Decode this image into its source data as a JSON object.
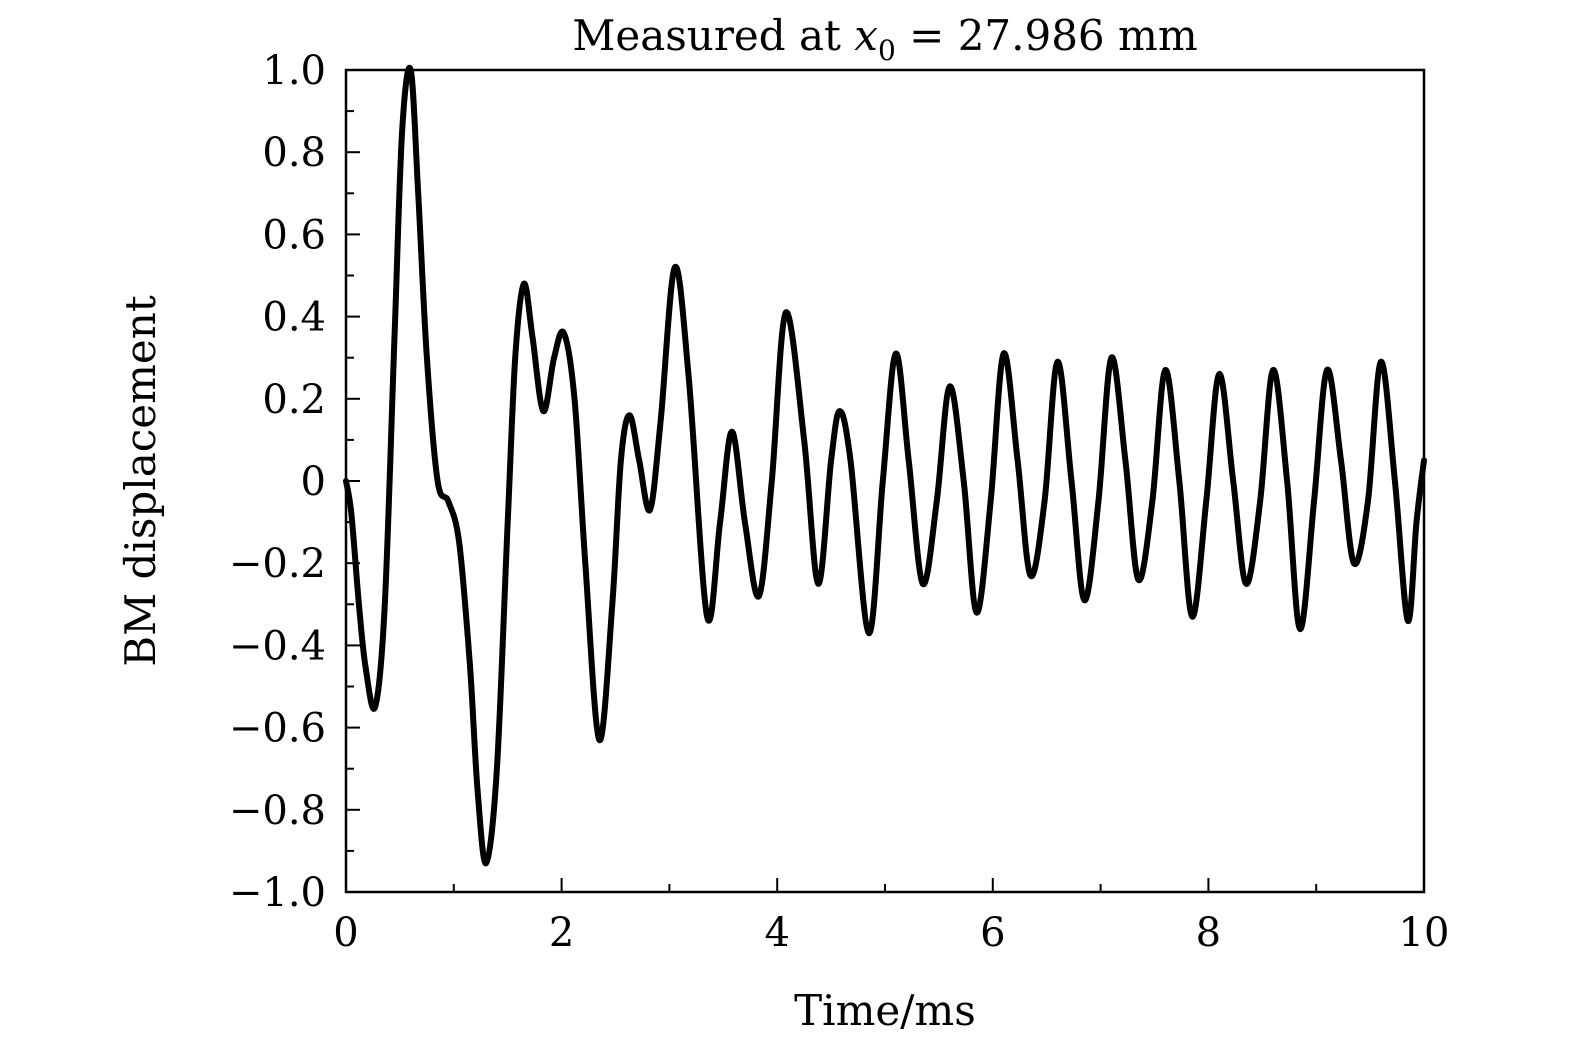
{
  "chart_data": {
    "type": "line",
    "title": "Measured at x₀ = 27.986 mm",
    "title_parts": {
      "prefix": "Measured at ",
      "var": "x",
      "sub": "0",
      "suffix": " = 27.986 mm"
    },
    "xlabel": "Time/ms",
    "ylabel": "BM displacement",
    "xlim": [
      0,
      10
    ],
    "ylim": [
      -1.0,
      1.0
    ],
    "x_ticks": [
      0,
      2,
      4,
      6,
      8,
      10
    ],
    "x_tick_labels": [
      "0",
      "2",
      "4",
      "6",
      "8",
      "10"
    ],
    "x_minor_ticks": [
      1,
      3,
      5,
      7,
      9
    ],
    "y_ticks": [
      -1.0,
      -0.8,
      -0.6,
      -0.4,
      -0.2,
      0,
      0.2,
      0.4,
      0.6,
      0.8,
      1.0
    ],
    "y_tick_labels": [
      "−1.0",
      "−0.8",
      "−0.6",
      "−0.4",
      "−0.2",
      "0",
      "0.2",
      "0.4",
      "0.6",
      "0.8",
      "1.0"
    ],
    "y_minor_ticks": [
      -0.9,
      -0.7,
      -0.5,
      -0.3,
      -0.1,
      0.1,
      0.3,
      0.5,
      0.7,
      0.9
    ],
    "grid": false,
    "line_color": "#000000",
    "series": [
      {
        "name": "BM displacement",
        "x": [
          0,
          0.05,
          0.12,
          0.18,
          0.27,
          0.36,
          0.45,
          0.52,
          0.6,
          0.67,
          0.75,
          0.85,
          0.95,
          1.05,
          1.15,
          1.22,
          1.3,
          1.4,
          1.5,
          1.57,
          1.65,
          1.73,
          1.83,
          1.93,
          2.02,
          2.12,
          2.22,
          2.35,
          2.47,
          2.55,
          2.63,
          2.72,
          2.82,
          2.92,
          3.05,
          3.18,
          3.35,
          3.47,
          3.58,
          3.7,
          3.83,
          3.95,
          4.08,
          4.25,
          4.38,
          4.5,
          4.58,
          4.68,
          4.85,
          4.98,
          5.1,
          5.22,
          5.35,
          5.48,
          5.6,
          5.73,
          5.85,
          5.98,
          6.1,
          6.23,
          6.35,
          6.48,
          6.6,
          6.73,
          6.85,
          6.98,
          7.1,
          7.23,
          7.35,
          7.48,
          7.6,
          7.73,
          7.85,
          7.98,
          8.1,
          8.23,
          8.35,
          8.48,
          8.6,
          8.73,
          8.85,
          8.98,
          9.1,
          9.23,
          9.35,
          9.48,
          9.6,
          9.73,
          9.85,
          9.93,
          10.0
        ],
        "y": [
          0.0,
          -0.08,
          -0.3,
          -0.45,
          -0.55,
          -0.3,
          0.35,
          0.85,
          1.0,
          0.7,
          0.3,
          0.0,
          -0.05,
          -0.15,
          -0.45,
          -0.75,
          -0.93,
          -0.7,
          -0.1,
          0.3,
          0.48,
          0.35,
          0.17,
          0.3,
          0.36,
          0.2,
          -0.2,
          -0.63,
          -0.3,
          0.05,
          0.16,
          0.05,
          -0.07,
          0.15,
          0.52,
          0.25,
          -0.33,
          -0.1,
          0.12,
          -0.1,
          -0.28,
          0.0,
          0.41,
          0.1,
          -0.25,
          0.05,
          0.17,
          0.05,
          -0.37,
          0.0,
          0.31,
          0.05,
          -0.25,
          -0.05,
          0.23,
          0.0,
          -0.32,
          -0.05,
          0.31,
          0.05,
          -0.23,
          -0.05,
          0.29,
          0.0,
          -0.29,
          -0.05,
          0.3,
          0.05,
          -0.24,
          -0.05,
          0.27,
          0.0,
          -0.33,
          -0.05,
          0.26,
          0.0,
          -0.25,
          -0.05,
          0.27,
          0.0,
          -0.36,
          -0.05,
          0.27,
          0.05,
          -0.2,
          -0.05,
          0.29,
          0.0,
          -0.34,
          -0.1,
          0.05
        ]
      }
    ]
  }
}
